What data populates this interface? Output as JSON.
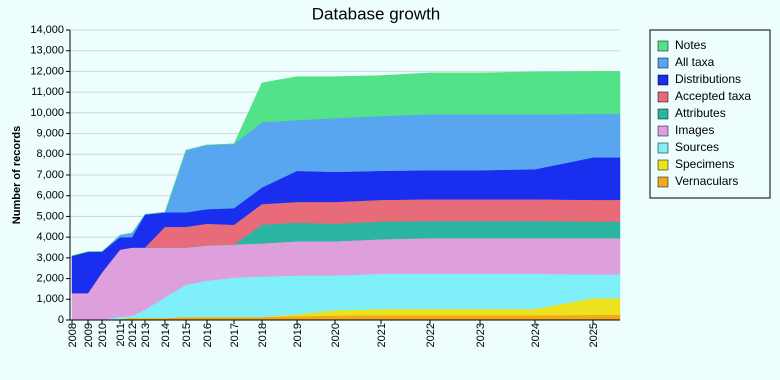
{
  "chart_data": {
    "type": "stacked-area",
    "title": "Database growth",
    "y_label": "Number of records",
    "categories": [
      "2008",
      "2009",
      "2010",
      "2011",
      "2012",
      "2013",
      "2014",
      "2015",
      "2016",
      "2017",
      "2018",
      "2019",
      "2020",
      "2021",
      "2022",
      "2023",
      "2024",
      "2025",
      null
    ],
    "ylim": [
      0,
      14000
    ],
    "yticks": [
      0,
      {
        "value": 1000,
        "label": "1,000"
      },
      {
        "value": 2000,
        "label": "2,000"
      },
      {
        "value": 3000,
        "label": "3,000"
      },
      {
        "value": 4000,
        "label": "4,000"
      },
      {
        "value": 5000,
        "label": "5,000"
      },
      {
        "value": 6000,
        "label": "6,000"
      },
      {
        "value": 7000,
        "label": "7,000"
      },
      {
        "value": 8000,
        "label": "8,000"
      },
      {
        "value": 9000,
        "label": "9,000"
      },
      {
        "value": 10000,
        "label": "10,000"
      },
      {
        "value": 11000,
        "label": "11,000"
      },
      {
        "value": 12000,
        "label": "12,000"
      },
      {
        "value": 13000,
        "label": "13,000"
      },
      {
        "value": 14000,
        "label": "14,000"
      }
    ],
    "grid": true,
    "series": [
      {
        "name": "Vernaculars",
        "color": "#f2a81d",
        "values": [
          0,
          0,
          0,
          50,
          100,
          100,
          100,
          150,
          150,
          150,
          150,
          180,
          220,
          230,
          230,
          230,
          230,
          250,
          250
        ]
      },
      {
        "name": "Specimens",
        "color": "#ece21e",
        "values": [
          0,
          0,
          0,
          0,
          0,
          0,
          0,
          0,
          0,
          0,
          0,
          100,
          250,
          300,
          300,
          300,
          300,
          800,
          800
        ]
      },
      {
        "name": "Sources",
        "color": "#7ff0fa",
        "values": [
          0,
          0,
          0,
          100,
          100,
          400,
          1000,
          1550,
          1750,
          1900,
          1950,
          1870,
          1680,
          1700,
          1700,
          1700,
          1700,
          1150,
          1150
        ]
      },
      {
        "name": "Images",
        "color": "#dea0dc",
        "values": [
          1300,
          1300,
          2300,
          3250,
          3300,
          3000,
          2400,
          1800,
          1700,
          1600,
          1600,
          1650,
          1650,
          1670,
          1720,
          1720,
          1720,
          1750,
          1750
        ]
      },
      {
        "name": "Attributes",
        "color": "#2ab5a0",
        "values": [
          0,
          0,
          0,
          0,
          0,
          0,
          0,
          0,
          0,
          0,
          900,
          900,
          850,
          850,
          830,
          830,
          830,
          800,
          800
        ]
      },
      {
        "name": "Accepted taxa",
        "color": "#e86b7a",
        "values": [
          0,
          0,
          0,
          0,
          0,
          0,
          1000,
          1000,
          1050,
          950,
          1000,
          1000,
          1050,
          1050,
          1050,
          1050,
          1050,
          1050,
          1050
        ]
      },
      {
        "name": "Distributions",
        "color": "#1a2ef0",
        "values": [
          1800,
          2000,
          1000,
          600,
          500,
          1600,
          700,
          700,
          700,
          800,
          800,
          1500,
          1450,
          1400,
          1400,
          1400,
          1450,
          2050,
          2050
        ]
      },
      {
        "name": "All taxa",
        "color": "#58a6f0",
        "values": [
          0,
          0,
          0,
          100,
          200,
          0,
          0,
          3000,
          3100,
          3100,
          3150,
          2450,
          2600,
          2650,
          2700,
          2700,
          2650,
          2100,
          2100
        ]
      },
      {
        "name": "Notes",
        "color": "#52e287",
        "values": [
          0,
          0,
          0,
          0,
          0,
          0,
          0,
          0,
          0,
          0,
          1900,
          2100,
          2000,
          1950,
          2000,
          2000,
          2050,
          2050,
          2050
        ]
      }
    ]
  }
}
